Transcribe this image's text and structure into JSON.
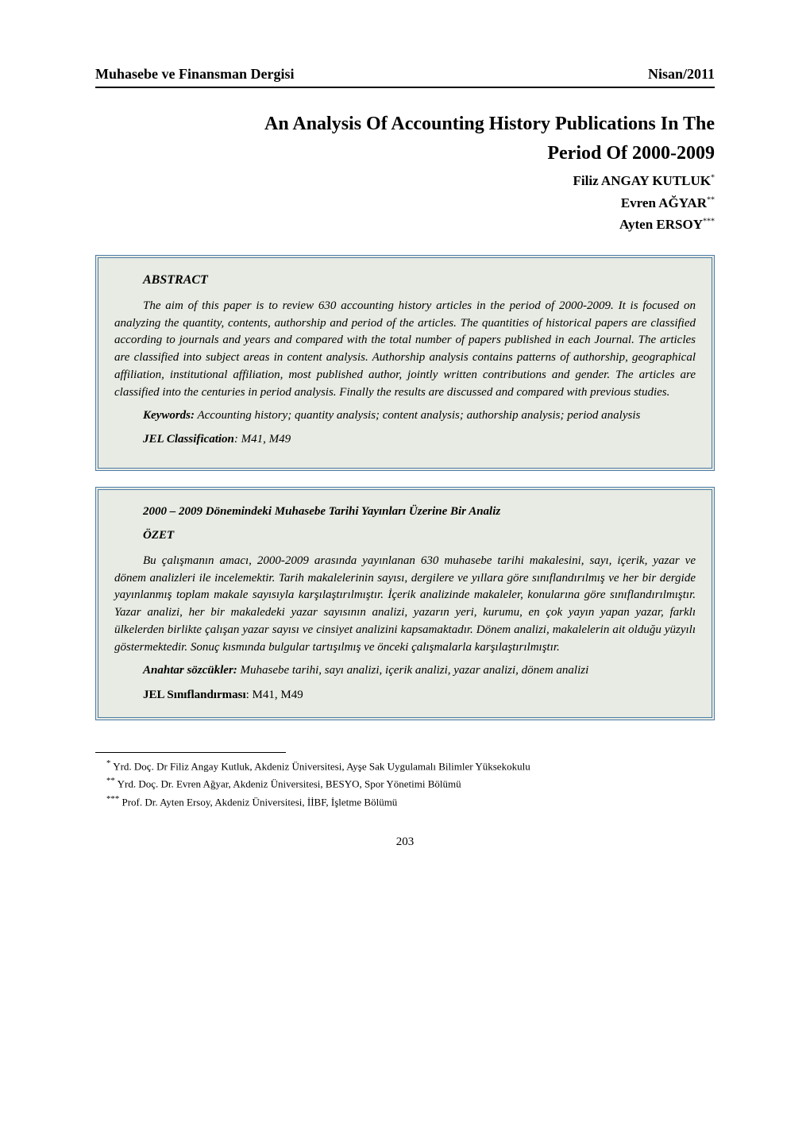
{
  "header": {
    "journal_title": "Muhasebe ve Finansman Dergisi",
    "issue_date": "Nisan/2011"
  },
  "paper": {
    "title_line1": "An Analysis Of Accounting History Publications In The",
    "title_line2": "Period Of 2000-2009",
    "authors": [
      "Filiz ANGAY KUTLUK",
      "Evren AĞYAR",
      "Ayten ERSOY"
    ]
  },
  "abstract_en": {
    "heading": "ABSTRACT",
    "body": "The aim of this paper is to review 630 accounting history articles in the period of 2000-2009. It is focused on analyzing the quantity, contents, authorship and period of the articles. The quantities of historical papers are classified according to journals and years and compared with the total number of papers published in each Journal. The articles are classified into subject areas in content analysis. Authorship analysis contains patterns of authorship, geographical affiliation, institutional affiliation, most published author, jointly written contributions and gender. The articles are classified into the centuries in period analysis. Finally the results are discussed and compared with previous studies.",
    "keywords_label": "Keywords:",
    "keywords_text": " Accounting history; quantity analysis; content analysis; authorship analysis; period  analysis",
    "jel_label": "JEL Classification",
    "jel_text": ": M41, M49"
  },
  "abstract_tr": {
    "subtitle": "2000 – 2009 Dönemindeki Muhasebe Tarihi Yayınları Üzerine Bir Analiz",
    "heading": "ÖZET",
    "body": "Bu çalışmanın amacı, 2000-2009 arasında yayınlanan 630 muhasebe tarihi makalesini, sayı, içerik, yazar ve dönem analizleri ile incelemektir. Tarih makalelerinin sayısı,  dergilere ve yıllara göre sınıflandırılmış ve her bir dergide yayınlanmış toplam makale sayısıyla karşılaştırılmıştır. İçerik analizinde makaleler,  konularına göre sınıflandırılmıştır. Yazar analizi, her bir makaledeki yazar sayısının analizi, yazarın yeri, kurumu, en çok yayın yapan yazar, farklı ülkelerden birlikte çalışan yazar sayısı ve cinsiyet analizini kapsamaktadır. Dönem analizi, makalelerin ait olduğu yüzyılı göstermektedir. Sonuç kısmında bulgular tartışılmış ve önceki çalışmalarla karşılaştırılmıştır.",
    "keywords_label": "Anahtar sözcükler:",
    "keywords_text": " Muhasebe tarihi, sayı analizi, içerik analizi, yazar analizi, dönem analizi",
    "jel_label": "JEL Sınıflandırması",
    "jel_text": ": M41, M49"
  },
  "footnotes": [
    "Yrd. Doç. Dr Filiz Angay Kutluk, Akdeniz Üniversitesi, Ayşe Sak Uygulamalı Bilimler Yüksekokulu",
    "Yrd. Doç. Dr. Evren Ağyar, Akdeniz Üniversitesi, BESYO, Spor Yönetimi Bölümü",
    "Prof. Dr. Ayten Ersoy, Akdeniz Üniversitesi, İİBF, İşletme Bölümü"
  ],
  "page_number": "203"
}
